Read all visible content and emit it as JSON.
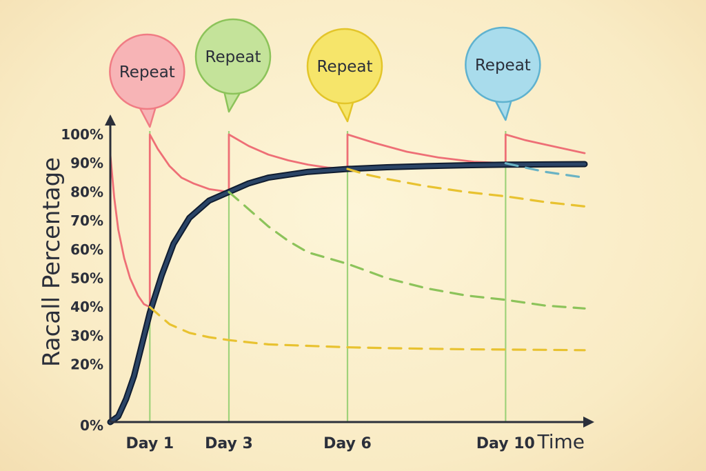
{
  "chart_data": {
    "type": "line",
    "title": "",
    "ylabel": "Racall Percentage",
    "xlabel": "Time",
    "ylim": [
      0,
      100
    ],
    "yticks": [
      "0%",
      "20%",
      "30%",
      "40%",
      "50%",
      "60%",
      "70%",
      "80%",
      "90%",
      "100%"
    ],
    "ytick_values": [
      0,
      20,
      30,
      40,
      50,
      60,
      70,
      80,
      90,
      100
    ],
    "xlim": [
      0,
      12
    ],
    "xticks": [
      {
        "label": "Day 1",
        "x": 1
      },
      {
        "label": "Day 3",
        "x": 3
      },
      {
        "label": "Day 6",
        "x": 6
      },
      {
        "label": "Day 10",
        "x": 10
      }
    ],
    "repeat_markers": [
      {
        "label": "Repeat",
        "x": 1,
        "color": "#f07c84",
        "fill": "#f7b4b6"
      },
      {
        "label": "Repeat",
        "x": 3,
        "color": "#8cc35a",
        "fill": "#c4e39a"
      },
      {
        "label": "Repeat",
        "x": 6,
        "color": "#e3c52a",
        "fill": "#f6e56a"
      },
      {
        "label": "Repeat",
        "x": 10,
        "color": "#5fb2cf",
        "fill": "#a9dcec"
      }
    ],
    "series": [
      {
        "style": "solid",
        "color": "#ee6f76",
        "points": [
          [
            0,
            93
          ],
          [
            0.1,
            78
          ],
          [
            0.2,
            67
          ],
          [
            0.35,
            57
          ],
          [
            0.5,
            50
          ],
          [
            0.7,
            44
          ],
          [
            0.85,
            41
          ],
          [
            1,
            40
          ],
          [
            1,
            100
          ],
          [
            1.2,
            95
          ],
          [
            1.5,
            89
          ],
          [
            1.8,
            85
          ],
          [
            2.1,
            83
          ],
          [
            2.5,
            81
          ],
          [
            3,
            80
          ],
          [
            3,
            100
          ],
          [
            3.5,
            96
          ],
          [
            4,
            93
          ],
          [
            4.5,
            91
          ],
          [
            5,
            89.5
          ],
          [
            5.5,
            88.5
          ],
          [
            6,
            88
          ],
          [
            6,
            100
          ],
          [
            6.7,
            97
          ],
          [
            7.5,
            94
          ],
          [
            8.3,
            92
          ],
          [
            9.2,
            90.5
          ],
          [
            10,
            90
          ],
          [
            10,
            100
          ],
          [
            10.5,
            98
          ],
          [
            11,
            96.5
          ],
          [
            11.5,
            95
          ],
          [
            12,
            93.5
          ]
        ]
      },
      {
        "style": "solid",
        "color": "#1f3350",
        "points": [
          [
            0,
            0
          ],
          [
            0.2,
            2
          ],
          [
            0.4,
            8
          ],
          [
            0.6,
            16
          ],
          [
            0.8,
            27
          ],
          [
            1,
            38
          ],
          [
            1.3,
            51
          ],
          [
            1.6,
            62
          ],
          [
            2,
            71
          ],
          [
            2.5,
            77
          ],
          [
            3,
            80
          ],
          [
            3.5,
            83
          ],
          [
            4,
            85
          ],
          [
            5,
            87
          ],
          [
            6,
            88
          ],
          [
            7,
            88.6
          ],
          [
            8,
            89
          ],
          [
            9,
            89.3
          ],
          [
            10,
            89.5
          ],
          [
            11,
            89.6
          ],
          [
            12,
            89.7
          ]
        ]
      },
      {
        "style": "dashed",
        "color": "#e8c230",
        "points": [
          [
            1,
            40
          ],
          [
            1.5,
            34
          ],
          [
            2,
            31
          ],
          [
            2.5,
            29.5
          ],
          [
            3,
            28.5
          ],
          [
            4,
            27
          ],
          [
            5,
            26.5
          ],
          [
            6,
            26
          ],
          [
            7,
            25.7
          ],
          [
            8,
            25.5
          ],
          [
            9,
            25.3
          ],
          [
            10,
            25.2
          ],
          [
            11,
            25.1
          ],
          [
            12,
            25
          ]
        ]
      },
      {
        "style": "dashed",
        "color": "#8cc35a",
        "points": [
          [
            3,
            80
          ],
          [
            3.5,
            74
          ],
          [
            4,
            68
          ],
          [
            4.5,
            63
          ],
          [
            5,
            59
          ],
          [
            6,
            55
          ],
          [
            7,
            50
          ],
          [
            8,
            46.5
          ],
          [
            9,
            44
          ],
          [
            10,
            42.5
          ],
          [
            11,
            40.5
          ],
          [
            12,
            39.5
          ]
        ]
      },
      {
        "style": "dashed",
        "color": "#e8c230",
        "points": [
          [
            6,
            88
          ],
          [
            6.5,
            86
          ],
          [
            7,
            84.5
          ],
          [
            8,
            82
          ],
          [
            9,
            80
          ],
          [
            10,
            78.5
          ],
          [
            11,
            76.5
          ],
          [
            12,
            75
          ]
        ]
      },
      {
        "style": "dashed",
        "color": "#6ab3c4",
        "points": [
          [
            10,
            90
          ],
          [
            10.5,
            88.5
          ],
          [
            11,
            87
          ],
          [
            11.5,
            86
          ],
          [
            12,
            85
          ]
        ]
      }
    ]
  }
}
